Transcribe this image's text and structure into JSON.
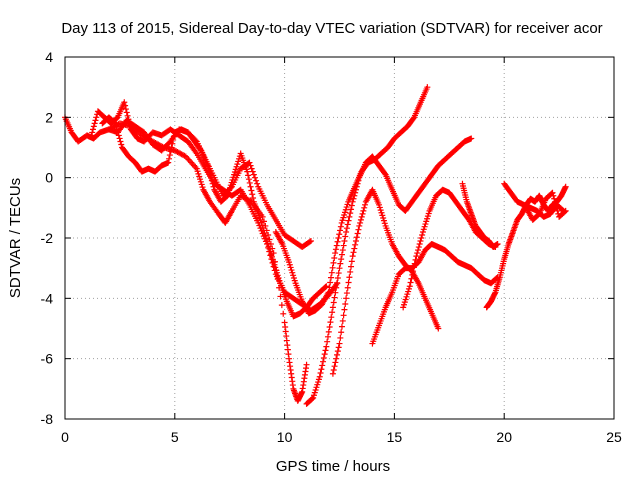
{
  "chart_data": {
    "type": "scatter",
    "title": "Day 113 of 2015, Sidereal Day-to-day VTEC variation (SDTVAR) for receiver acor",
    "xlabel": "GPS time / hours",
    "ylabel": "SDTVAR / TECUs",
    "xlim": [
      0,
      25
    ],
    "ylim": [
      -8,
      4
    ],
    "xticks": [
      "0",
      "5",
      "10",
      "15",
      "20",
      "25"
    ],
    "yticks": [
      "-8",
      "-6",
      "-4",
      "-2",
      "0",
      "2",
      "4"
    ],
    "grid": true,
    "marker": "plus",
    "color": "#ff0000",
    "series": [
      {
        "x": [
          0.0,
          0.3,
          0.6,
          1.0,
          1.3,
          1.6,
          2.0,
          2.5,
          3.0,
          3.5,
          4.0,
          4.5,
          5.0,
          5.5,
          6.0,
          6.3,
          6.6,
          7.0,
          7.3,
          7.6,
          8.0,
          8.5,
          9.0,
          9.5,
          10.0,
          10.2,
          10.4,
          10.6,
          10.8,
          11.0
        ],
        "y": [
          2.0,
          1.5,
          1.2,
          1.4,
          1.3,
          1.5,
          1.6,
          1.8,
          1.7,
          1.4,
          1.2,
          1.0,
          0.9,
          0.7,
          0.3,
          -0.4,
          -0.8,
          -1.2,
          -1.5,
          -1.1,
          -0.6,
          -0.8,
          -1.3,
          -2.5,
          -4.8,
          -6.0,
          -7.0,
          -7.4,
          -7.1,
          -6.2
        ]
      },
      {
        "x": [
          1.2,
          1.5,
          1.8,
          2.1,
          2.4,
          2.7,
          3.0,
          3.3,
          3.6,
          4.0,
          4.4,
          4.8,
          5.2,
          5.6,
          6.0,
          6.4,
          6.8,
          7.2,
          7.6,
          8.0,
          8.4,
          8.8,
          9.2,
          9.6,
          10.0,
          10.4,
          10.8,
          11.2,
          11.6,
          12.0,
          12.4
        ],
        "y": [
          1.4,
          2.2,
          2.0,
          1.8,
          2.0,
          2.5,
          1.6,
          1.3,
          1.2,
          1.5,
          1.4,
          1.6,
          1.4,
          1.2,
          0.8,
          0.3,
          -0.2,
          -0.4,
          -0.6,
          -0.4,
          -0.9,
          -1.5,
          -2.2,
          -3.2,
          -3.8,
          -4.0,
          -4.2,
          -4.4,
          -4.2,
          -3.9,
          -3.5
        ]
      },
      {
        "x": [
          1.7,
          2.0,
          2.3,
          2.6,
          2.9,
          3.2,
          3.5,
          3.8,
          4.1,
          4.4,
          4.7,
          5.0,
          5.3,
          5.6,
          5.9,
          6.2,
          6.5,
          6.8,
          7.1,
          7.4,
          7.7,
          8.0,
          8.3,
          8.6,
          8.9,
          9.2,
          9.5,
          9.8,
          10.1,
          10.4,
          10.7,
          11.0,
          11.3,
          11.6,
          11.9
        ],
        "y": [
          1.8,
          2.0,
          1.8,
          1.0,
          0.7,
          0.5,
          0.2,
          0.3,
          0.2,
          0.4,
          0.5,
          1.5,
          1.6,
          1.5,
          1.2,
          0.9,
          0.4,
          -0.4,
          -0.8,
          -0.6,
          0.1,
          0.8,
          0.2,
          -0.8,
          -1.4,
          -2.1,
          -2.8,
          -3.5,
          -4.1,
          -4.6,
          -4.5,
          -4.3,
          -4.0,
          -3.8,
          -3.6
        ]
      },
      {
        "x": [
          2.0,
          2.4,
          2.8,
          3.2,
          3.6,
          4.0,
          4.4,
          4.8,
          5.2,
          5.6,
          6.0,
          6.4,
          6.8,
          7.2,
          7.6,
          8.0,
          8.4,
          8.8,
          9.2,
          9.6,
          10.0,
          10.4,
          10.8,
          11.2
        ],
        "y": [
          1.6,
          1.5,
          1.9,
          1.7,
          1.5,
          1.1,
          0.9,
          1.2,
          1.6,
          1.5,
          1.2,
          0.6,
          0.0,
          -0.6,
          -0.3,
          0.3,
          0.5,
          -0.3,
          -0.9,
          -1.4,
          -1.9,
          -2.1,
          -2.3,
          -2.1
        ]
      },
      {
        "x": [
          9.6,
          9.9,
          10.2,
          10.5,
          10.8,
          11.1,
          11.4,
          11.7,
          12.0,
          12.3,
          12.6,
          12.9,
          13.2,
          13.5,
          13.8,
          14.1,
          14.4,
          14.7,
          15.0,
          15.3,
          15.6,
          15.9,
          16.2,
          16.5
        ],
        "y": [
          -1.8,
          -2.2,
          -2.8,
          -3.5,
          -4.1,
          -4.5,
          -4.4,
          -4.2,
          -3.8,
          -2.5,
          -1.5,
          -0.8,
          -0.3,
          0.2,
          0.5,
          0.6,
          0.8,
          1.0,
          1.3,
          1.5,
          1.7,
          2.0,
          2.5,
          3.0
        ]
      },
      {
        "x": [
          11.0,
          11.3,
          11.6,
          11.9,
          12.2,
          12.5,
          12.8,
          13.1,
          13.4,
          13.7,
          14.0,
          14.3,
          14.6,
          14.9,
          15.2,
          15.5,
          15.8,
          16.1,
          16.4,
          16.7,
          17.0,
          17.3,
          17.6,
          17.9,
          18.2,
          18.5
        ],
        "y": [
          -7.5,
          -7.3,
          -6.6,
          -5.6,
          -4.3,
          -3.0,
          -1.8,
          -0.8,
          0.0,
          0.5,
          0.7,
          0.4,
          0.1,
          -0.4,
          -0.9,
          -1.1,
          -0.8,
          -0.5,
          -0.2,
          0.1,
          0.4,
          0.6,
          0.8,
          1.0,
          1.2,
          1.3
        ]
      },
      {
        "x": [
          12.2,
          12.5,
          12.8,
          13.1,
          13.4,
          13.7,
          14.0,
          14.3,
          14.6,
          14.9,
          15.2,
          15.5,
          15.8,
          16.1,
          16.4,
          16.7,
          17.0
        ],
        "y": [
          -6.5,
          -5.5,
          -4.0,
          -2.6,
          -1.6,
          -0.8,
          -0.4,
          -0.9,
          -1.6,
          -2.2,
          -2.6,
          -2.9,
          -3.1,
          -3.5,
          -4.0,
          -4.5,
          -5.0
        ]
      },
      {
        "x": [
          14.0,
          14.3,
          14.6,
          14.9,
          15.2,
          15.5,
          15.8,
          16.1,
          16.4,
          16.7,
          17.0,
          17.3,
          17.6,
          17.9,
          18.2,
          18.5,
          18.8,
          19.1,
          19.4,
          19.7
        ],
        "y": [
          -5.5,
          -4.9,
          -4.3,
          -3.8,
          -3.2,
          -3.0,
          -3.0,
          -2.8,
          -2.4,
          -2.2,
          -2.3,
          -2.4,
          -2.6,
          -2.8,
          -2.9,
          -3.0,
          -3.2,
          -3.4,
          -3.5,
          -3.3
        ]
      },
      {
        "x": [
          15.4,
          15.7,
          16.0,
          16.3,
          16.6,
          16.9,
          17.2,
          17.5,
          17.8,
          18.1,
          18.4,
          18.7,
          19.0,
          19.3,
          19.6
        ],
        "y": [
          -4.3,
          -3.6,
          -2.6,
          -1.8,
          -1.1,
          -0.6,
          -0.4,
          -0.5,
          -0.8,
          -1.1,
          -1.4,
          -1.8,
          -2.0,
          -2.2,
          -2.3
        ]
      },
      {
        "x": [
          18.1,
          18.3,
          18.5,
          18.7,
          18.9,
          19.1,
          19.3,
          19.5,
          19.7
        ],
        "y": [
          -0.2,
          -0.8,
          -1.2,
          -1.6,
          -1.8,
          -2.0,
          -2.1,
          -2.3,
          -2.2
        ]
      },
      {
        "x": [
          19.2,
          19.4,
          19.6,
          19.8,
          20.0,
          20.2,
          20.4,
          20.6,
          20.8,
          21.0,
          21.2,
          21.4,
          21.6,
          21.8,
          22.0,
          22.2,
          22.4,
          22.6,
          22.8
        ],
        "y": [
          -4.3,
          -4.1,
          -3.8,
          -3.3,
          -2.7,
          -2.2,
          -1.8,
          -1.4,
          -1.2,
          -0.9,
          -0.7,
          -0.8,
          -0.6,
          -0.9,
          -1.1,
          -0.9,
          -0.8,
          -0.6,
          -0.3
        ]
      },
      {
        "x": [
          20.0,
          20.3,
          20.6,
          20.9,
          21.2,
          21.5,
          21.8,
          22.1,
          22.4,
          22.7
        ],
        "y": [
          -0.2,
          -0.5,
          -0.8,
          -0.9,
          -1.0,
          -1.1,
          -1.3,
          -1.2,
          -0.9,
          -1.1
        ]
      },
      {
        "x": [
          21.0,
          21.3,
          21.6,
          21.9,
          22.2,
          22.5,
          22.8
        ],
        "y": [
          -1.0,
          -1.4,
          -1.2,
          -0.7,
          -0.5,
          -1.3,
          -1.1
        ]
      }
    ]
  }
}
